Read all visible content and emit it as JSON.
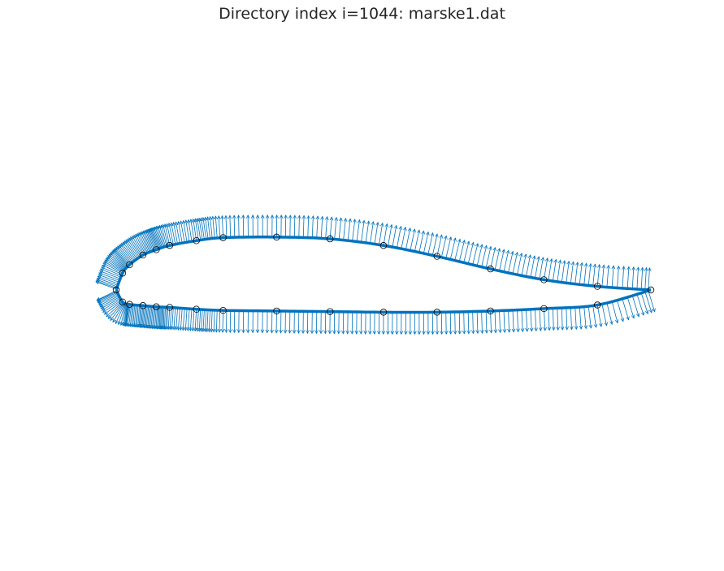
{
  "figure": {
    "title": "Directory index i=1044: marske1.dat"
  },
  "colors": {
    "curve": "#0072BD",
    "normals": "#0072BD",
    "markers": "#000000",
    "background": "#ffffff"
  },
  "chart_data": {
    "type": "scatter",
    "description_fields_visible": false,
    "chord_range_x": [
      0,
      1
    ],
    "grid": false,
    "axes_visible": false,
    "series": [
      {
        "kind": "upper-surface-points",
        "x": [
          0.0,
          0.012,
          0.025,
          0.05,
          0.075,
          0.1,
          0.15,
          0.2,
          0.3,
          0.4,
          0.5,
          0.6,
          0.7,
          0.8,
          0.9,
          1.0
        ],
        "y": [
          0.0,
          0.028,
          0.042,
          0.058,
          0.067,
          0.074,
          0.082,
          0.087,
          0.088,
          0.085,
          0.074,
          0.056,
          0.035,
          0.017,
          0.006,
          0.0
        ]
      },
      {
        "kind": "lower-surface-points",
        "x": [
          0.012,
          0.025,
          0.05,
          0.075,
          0.1,
          0.15,
          0.2,
          0.3,
          0.4,
          0.5,
          0.6,
          0.7,
          0.8,
          0.9
        ],
        "y": [
          -0.02,
          -0.024,
          -0.026,
          -0.028,
          -0.029,
          -0.032,
          -0.034,
          -0.035,
          -0.036,
          -0.037,
          -0.037,
          -0.035,
          -0.031,
          -0.025
        ]
      }
    ]
  }
}
